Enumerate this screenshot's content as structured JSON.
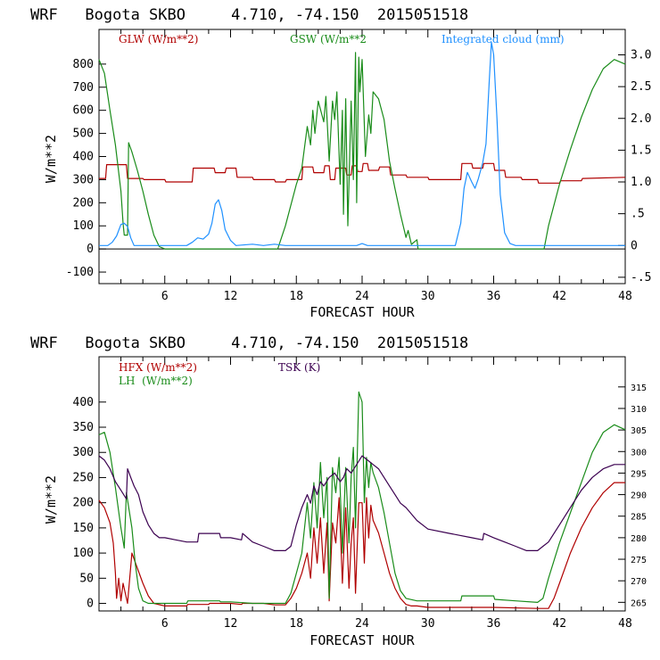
{
  "chart_data": [
    {
      "type": "line",
      "title": "WRF   Bogota SKBO     4.710, -74.150  2015051518",
      "xlabel": "FORECAST HOUR",
      "ylabel": "W/m**2",
      "xlim": [
        0,
        48
      ],
      "ylim": [
        -150,
        950
      ],
      "y2lim": [
        -0.6,
        3.4
      ],
      "xticks": [
        6,
        12,
        18,
        24,
        30,
        36,
        42,
        48
      ],
      "xtick_labels": [
        "6",
        "12",
        "18",
        "24",
        "30",
        "36",
        "42",
        "48"
      ],
      "yticks": [
        -100,
        0,
        100,
        200,
        300,
        400,
        500,
        600,
        700,
        800
      ],
      "ytick_labels": [
        "-100",
        "0",
        "100",
        "200",
        "300",
        "400",
        "500",
        "600",
        "700",
        "800"
      ],
      "y2ticks": [
        -0.5,
        0,
        0.5,
        1.0,
        1.5,
        2.0,
        2.5,
        3.0
      ],
      "y2tick_labels": [
        "-.5",
        "0",
        ".5",
        "1.0",
        "1.5",
        "2.0",
        "2.5",
        "3.0"
      ],
      "series": [
        {
          "name": "GLW (W/m**2)",
          "color": "#b00000",
          "axis": "left",
          "x": [
            0,
            0.6,
            0.7,
            2.5,
            2.6,
            4,
            4.1,
            6,
            6.1,
            8.5,
            8.6,
            10.5,
            10.6,
            11.5,
            11.6,
            12.5,
            12.6,
            14,
            14.1,
            16,
            16.1,
            17,
            17.1,
            18.5,
            18.6,
            19.5,
            19.6,
            20.5,
            20.6,
            21,
            21.1,
            21.5,
            21.6,
            22.5,
            22.6,
            23,
            23.1,
            23.5,
            23.6,
            24,
            24.1,
            24.5,
            24.6,
            25.5,
            25.6,
            26.5,
            26.6,
            28,
            28.1,
            30,
            30.1,
            33,
            33.1,
            34,
            34.1,
            35,
            35.1,
            36,
            36.1,
            37,
            37.1,
            38.5,
            38.6,
            40,
            40.1,
            42,
            42.1,
            44,
            44.1,
            48
          ],
          "values": [
            305,
            305,
            365,
            365,
            305,
            305,
            300,
            300,
            290,
            290,
            350,
            350,
            330,
            330,
            350,
            350,
            310,
            310,
            300,
            300,
            290,
            290,
            300,
            300,
            355,
            355,
            330,
            330,
            360,
            360,
            300,
            300,
            350,
            350,
            320,
            320,
            360,
            360,
            335,
            335,
            370,
            370,
            340,
            340,
            355,
            355,
            320,
            320,
            310,
            310,
            300,
            300,
            370,
            370,
            350,
            350,
            370,
            370,
            340,
            340,
            310,
            310,
            300,
            300,
            285,
            285,
            295,
            295,
            305,
            310
          ]
        },
        {
          "name": "GSW (W/m**2",
          "color": "#1a8c1a",
          "axis": "left",
          "x": [
            0,
            0.5,
            1,
            1.5,
            2,
            2.2,
            2.3,
            2.6,
            2.7,
            3,
            3.5,
            4,
            4.5,
            5,
            5.5,
            6,
            16.3,
            17,
            18,
            18.5,
            19,
            19.3,
            19.5,
            19.7,
            20,
            20.5,
            20.7,
            21,
            21.3,
            21.5,
            21.7,
            22,
            22.2,
            22.3,
            22.5,
            22.7,
            23,
            23.2,
            23.4,
            23.5,
            23.7,
            23.8,
            24,
            24.3,
            24.6,
            24.8,
            25,
            25.5,
            26,
            26.5,
            27,
            27.5,
            28,
            28.2,
            28.5,
            29,
            29.1,
            40.6,
            41,
            42,
            43,
            44,
            45,
            46,
            47,
            48
          ],
          "values": [
            820,
            760,
            600,
            450,
            250,
            110,
            60,
            60,
            460,
            420,
            340,
            250,
            150,
            60,
            10,
            0,
            0,
            100,
            280,
            350,
            530,
            450,
            600,
            500,
            640,
            550,
            660,
            380,
            640,
            560,
            680,
            280,
            600,
            150,
            650,
            100,
            640,
            300,
            850,
            200,
            830,
            680,
            820,
            400,
            580,
            500,
            680,
            650,
            560,
            380,
            260,
            150,
            50,
            80,
            20,
            40,
            0,
            0,
            100,
            280,
            430,
            570,
            690,
            780,
            820,
            800
          ]
        },
        {
          "name": "Integrated cloud (mm)",
          "color": "#1e90ff",
          "axis": "right",
          "x": [
            0,
            0.8,
            1.2,
            1.6,
            2,
            2.3,
            2.6,
            2.9,
            3.2,
            8,
            8.5,
            9,
            9.5,
            10,
            10.3,
            10.6,
            10.9,
            11.2,
            11.5,
            12,
            12.5,
            14,
            15,
            16,
            17,
            23.5,
            24,
            24.5,
            32.5,
            33,
            33.3,
            33.6,
            34,
            34.3,
            34.6,
            35,
            35.3,
            35.6,
            35.8,
            36,
            36.3,
            36.6,
            37,
            37.5,
            38,
            48
          ],
          "values": [
            0,
            0,
            0.05,
            0.15,
            0.33,
            0.35,
            0.3,
            0.12,
            0,
            0,
            0.05,
            0.12,
            0.1,
            0.18,
            0.35,
            0.65,
            0.72,
            0.55,
            0.25,
            0.08,
            0,
            0.02,
            0,
            0.02,
            0,
            0,
            0.03,
            0,
            0,
            0.35,
            0.9,
            1.15,
            1.0,
            0.9,
            1.05,
            1.3,
            1.6,
            2.6,
            3.2,
            3.0,
            2.0,
            0.8,
            0.2,
            0.03,
            0,
            0
          ]
        }
      ]
    },
    {
      "type": "line",
      "title": "WRF   Bogota SKBO     4.710, -74.150  2015051518",
      "xlabel": "FORECAST HOUR",
      "ylabel": "W/m**2",
      "xlim": [
        0,
        48
      ],
      "ylim": [
        -15,
        490
      ],
      "y2lim": [
        263,
        322
      ],
      "xticks": [
        6,
        12,
        18,
        24,
        30,
        36,
        42,
        48
      ],
      "xtick_labels": [
        "6",
        "12",
        "18",
        "24",
        "30",
        "36",
        "42",
        "48"
      ],
      "yticks": [
        0,
        50,
        100,
        150,
        200,
        250,
        300,
        350,
        400
      ],
      "ytick_labels": [
        "0",
        "50",
        "100",
        "150",
        "200",
        "250",
        "300",
        "350",
        "400"
      ],
      "y2ticks": [
        265,
        270,
        275,
        280,
        285,
        290,
        295,
        300,
        305,
        310,
        315
      ],
      "y2tick_labels": [
        "265",
        "270",
        "275",
        "280",
        "285",
        "290",
        "295",
        "300",
        "305",
        "310",
        "315"
      ],
      "series": [
        {
          "name": "HFX (W/m**2)",
          "color": "#b00000",
          "axis": "left",
          "x": [
            0,
            0.5,
            1,
            1.3,
            1.5,
            1.6,
            1.8,
            2,
            2.2,
            2.6,
            3,
            3.5,
            4,
            4.5,
            5,
            6,
            8,
            8.1,
            10,
            10.1,
            12,
            13,
            13.1,
            15,
            16,
            17,
            17.5,
            18,
            18.5,
            19,
            19.3,
            19.6,
            19.9,
            20.2,
            20.5,
            20.8,
            21,
            21.3,
            21.6,
            21.9,
            22.2,
            22.5,
            22.8,
            23,
            23.2,
            23.4,
            23.7,
            24,
            24.2,
            24.4,
            24.6,
            24.8,
            25,
            25.5,
            26,
            26.5,
            27,
            27.5,
            28,
            28.5,
            29,
            30,
            36,
            40,
            41,
            41.5,
            42,
            43,
            44,
            45,
            46,
            47,
            48
          ],
          "values": [
            205,
            190,
            160,
            120,
            60,
            10,
            50,
            5,
            40,
            0,
            100,
            70,
            40,
            15,
            0,
            -5,
            -5,
            -2,
            -2,
            0,
            0,
            -2,
            0,
            0,
            -3,
            -3,
            10,
            30,
            60,
            100,
            50,
            150,
            80,
            170,
            60,
            160,
            5,
            160,
            120,
            210,
            40,
            190,
            30,
            120,
            170,
            20,
            200,
            200,
            80,
            210,
            130,
            195,
            165,
            140,
            100,
            60,
            30,
            10,
            -2,
            -5,
            -5,
            -8,
            -8,
            -10,
            -10,
            10,
            40,
            100,
            150,
            190,
            220,
            240,
            240
          ]
        },
        {
          "name": "LH  (W/m**2)",
          "color": "#1a8c1a",
          "axis": "left",
          "x": [
            0,
            0.5,
            1,
            1.5,
            2,
            2.3,
            2.5,
            3,
            3.3,
            3.6,
            4,
            4.5,
            5,
            6,
            8,
            8.1,
            11,
            11.1,
            12,
            14,
            16,
            17,
            17.5,
            18,
            18.5,
            19,
            19.3,
            19.6,
            19.9,
            20.2,
            20.5,
            20.8,
            21,
            21.3,
            21.6,
            21.9,
            22.2,
            22.5,
            22.8,
            23,
            23.2,
            23.4,
            23.7,
            24,
            24.2,
            24.4,
            24.6,
            24.8,
            25,
            25.5,
            26,
            26.5,
            27,
            27.5,
            28,
            29,
            30,
            33,
            33.1,
            36,
            36.1,
            38,
            40,
            40.5,
            41,
            42,
            43,
            44,
            45,
            46,
            47,
            48
          ],
          "values": [
            335,
            340,
            300,
            230,
            150,
            110,
            220,
            150,
            80,
            30,
            5,
            0,
            0,
            0,
            0,
            5,
            5,
            3,
            3,
            0,
            0,
            0,
            20,
            60,
            100,
            200,
            130,
            240,
            150,
            280,
            170,
            250,
            10,
            270,
            220,
            290,
            100,
            270,
            120,
            250,
            310,
            150,
            420,
            400,
            200,
            290,
            230,
            280,
            260,
            230,
            180,
            120,
            60,
            25,
            10,
            5,
            5,
            5,
            15,
            15,
            8,
            5,
            2,
            10,
            50,
            120,
            180,
            240,
            300,
            340,
            355,
            345
          ]
        },
        {
          "name": "TSK (K)",
          "color": "#3b0050",
          "axis": "right",
          "x": [
            0,
            0.5,
            1,
            1.5,
            2,
            2.5,
            2.6,
            2.9,
            3.2,
            3.6,
            4,
            4.5,
            5,
            5.5,
            6,
            7,
            8,
            9,
            9.1,
            11,
            11.1,
            12,
            13,
            13.1,
            14,
            15,
            16,
            17,
            17.5,
            18,
            18.5,
            19,
            19.3,
            19.6,
            19.9,
            20.2,
            20.5,
            21,
            21.5,
            22,
            22.3,
            22.6,
            23,
            23.5,
            24,
            24.5,
            25,
            25.5,
            26,
            26.5,
            27,
            27.5,
            28,
            29,
            30,
            32,
            34,
            35,
            35.1,
            36,
            37,
            38,
            39,
            40,
            40.5,
            41,
            42,
            43,
            44,
            45,
            46,
            47,
            48
          ],
          "values": [
            299,
            298,
            296,
            293,
            291,
            289,
            296,
            294,
            292,
            290,
            286,
            283,
            281,
            280,
            280,
            279.5,
            279,
            279,
            281,
            281,
            280,
            280,
            279.5,
            281,
            279,
            278,
            277,
            277,
            278,
            283,
            287,
            290,
            288,
            292,
            290,
            293,
            292,
            294,
            295,
            293,
            294,
            296,
            295,
            297,
            299,
            298,
            297,
            296,
            294,
            292,
            290,
            288,
            287,
            284,
            282,
            281,
            280,
            279.5,
            281,
            280,
            279,
            278,
            277,
            277,
            278,
            279,
            283,
            287,
            291,
            294,
            296,
            297,
            297
          ]
        }
      ]
    }
  ]
}
